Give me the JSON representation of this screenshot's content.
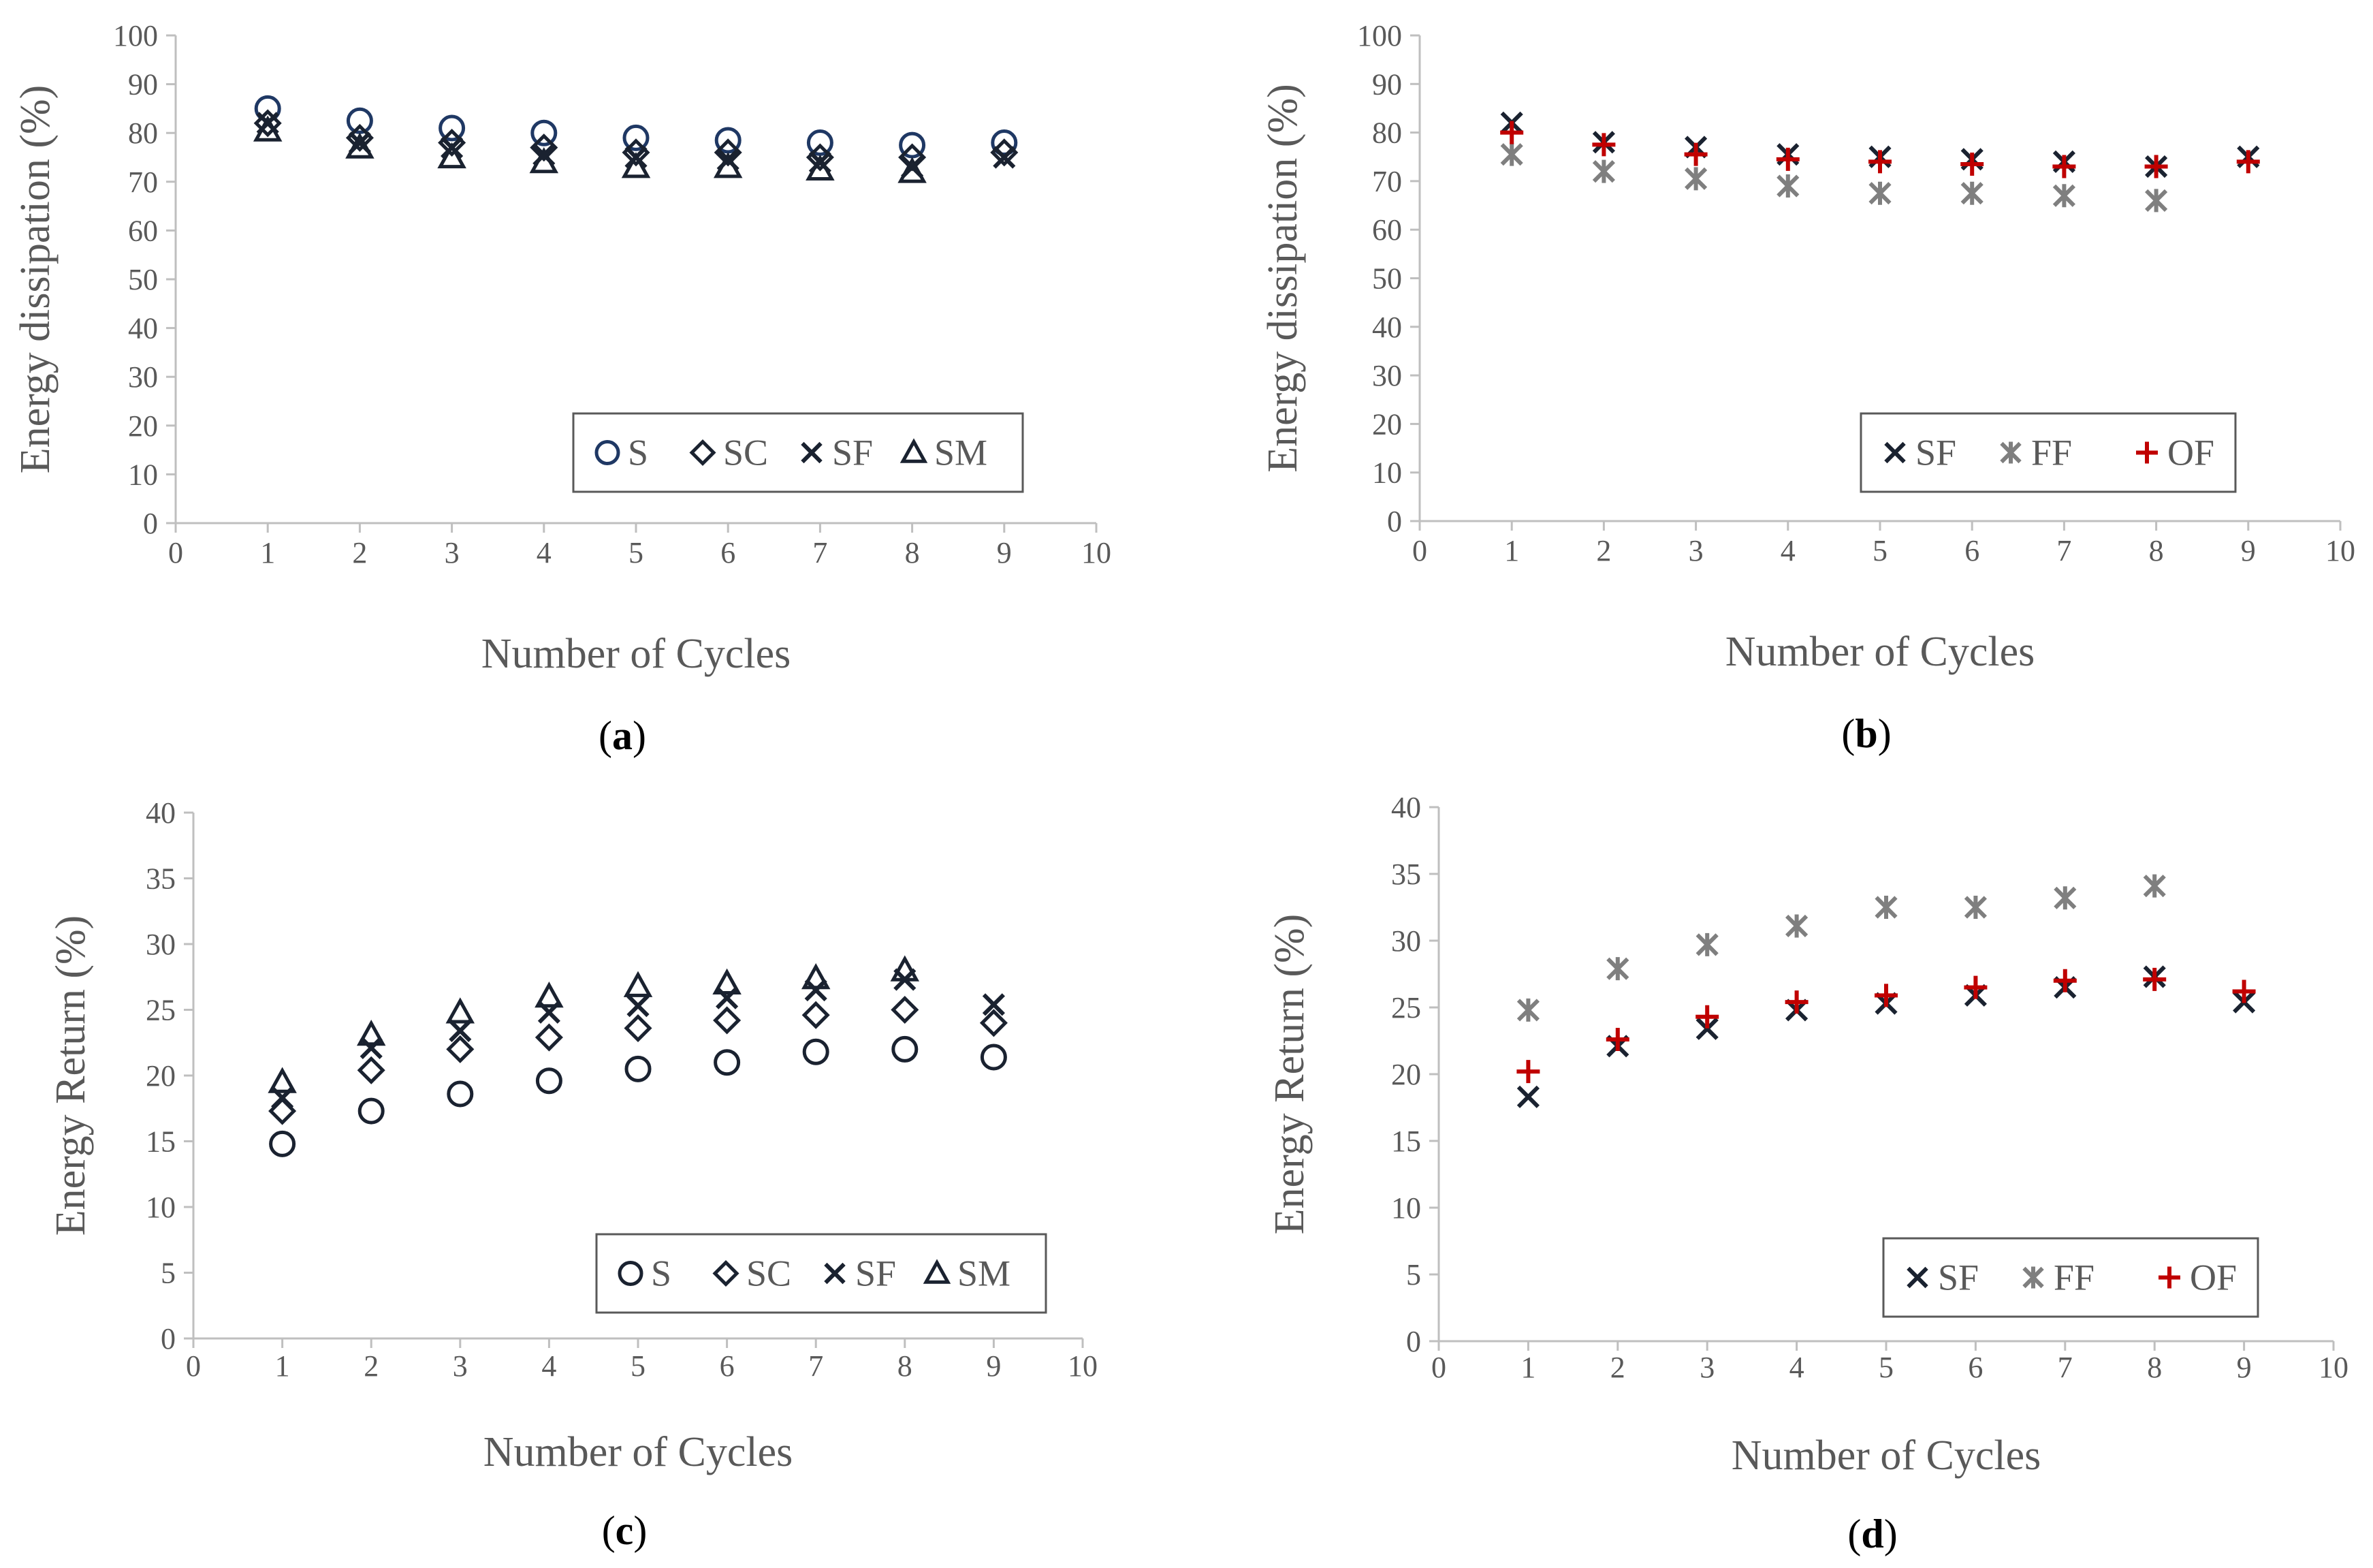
{
  "colors": {
    "navy": "#1f3864",
    "dark": "#1a2230",
    "gray": "#7f7f7f",
    "red": "#c00000",
    "axis": "#bfbfbf",
    "text": "#595959"
  },
  "chart_data": [
    {
      "id": "a",
      "type": "scatter",
      "caption": "(a)",
      "xlabel": "Number of Cycles",
      "ylabel": "Energy dissipation (%)",
      "xlim": [
        0,
        10
      ],
      "ylim": [
        0,
        100
      ],
      "xticks": [
        0,
        1,
        2,
        3,
        4,
        5,
        6,
        7,
        8,
        9,
        10
      ],
      "yticks": [
        0,
        10,
        20,
        30,
        40,
        50,
        60,
        70,
        80,
        90,
        100
      ],
      "grid": false,
      "legend_position": "bottom-right",
      "series": [
        {
          "name": "S",
          "marker": "circle",
          "color": "#1f3864",
          "x": [
            1,
            2,
            3,
            4,
            5,
            6,
            7,
            8,
            9
          ],
          "y": [
            85,
            82.5,
            81,
            80,
            79,
            78.5,
            78,
            77.5,
            78
          ]
        },
        {
          "name": "SC",
          "marker": "diamond",
          "color": "#1a2230",
          "x": [
            1,
            2,
            3,
            4,
            5,
            6,
            7,
            8,
            9
          ],
          "y": [
            82,
            79,
            78,
            77,
            76,
            76,
            75,
            75,
            76
          ]
        },
        {
          "name": "SF",
          "marker": "x",
          "color": "#1a2230",
          "x": [
            1,
            2,
            3,
            4,
            5,
            6,
            7,
            8,
            9
          ],
          "y": [
            82,
            78,
            77,
            75.5,
            75,
            74.5,
            74,
            73,
            75
          ]
        },
        {
          "name": "SM",
          "marker": "triangle",
          "color": "#1a2230",
          "x": [
            1,
            2,
            3,
            4,
            5,
            6,
            7,
            8
          ],
          "y": [
            80.5,
            77,
            75,
            74,
            73,
            73,
            72.5,
            72
          ]
        }
      ]
    },
    {
      "id": "b",
      "type": "scatter",
      "caption": "(b)",
      "xlabel": "Number of Cycles",
      "ylabel": "Energy dissipation (%)",
      "xlim": [
        0,
        10
      ],
      "ylim": [
        0,
        100
      ],
      "xticks": [
        0,
        1,
        2,
        3,
        4,
        5,
        6,
        7,
        8,
        9,
        10
      ],
      "yticks": [
        0,
        10,
        20,
        30,
        40,
        50,
        60,
        70,
        80,
        90,
        100
      ],
      "grid": false,
      "legend_position": "bottom-right",
      "series": [
        {
          "name": "SF",
          "marker": "x",
          "color": "#1a2230",
          "x": [
            1,
            2,
            3,
            4,
            5,
            6,
            7,
            8,
            9
          ],
          "y": [
            82,
            78,
            77,
            75.5,
            75,
            74.5,
            74,
            73,
            75
          ]
        },
        {
          "name": "FF",
          "marker": "asterisk",
          "color": "#7f7f7f",
          "x": [
            1,
            2,
            3,
            4,
            5,
            6,
            7,
            8
          ],
          "y": [
            75.5,
            72,
            70.5,
            69,
            67.5,
            67.5,
            67,
            66
          ]
        },
        {
          "name": "OF",
          "marker": "plus",
          "color": "#c00000",
          "x": [
            1,
            2,
            3,
            4,
            5,
            6,
            7,
            8,
            9
          ],
          "y": [
            80,
            77.5,
            75.5,
            74.5,
            74,
            73.5,
            73,
            73,
            74
          ]
        }
      ]
    },
    {
      "id": "c",
      "type": "scatter",
      "caption": "(c)",
      "xlabel": "Number of Cycles",
      "ylabel": "Energy Return (%)",
      "xlim": [
        0,
        10
      ],
      "ylim": [
        0,
        40
      ],
      "xticks": [
        0,
        1,
        2,
        3,
        4,
        5,
        6,
        7,
        8,
        9,
        10
      ],
      "yticks": [
        0,
        5,
        10,
        15,
        20,
        25,
        30,
        35,
        40
      ],
      "grid": false,
      "legend_position": "bottom-right",
      "series": [
        {
          "name": "S",
          "marker": "circle",
          "color": "#1a2230",
          "x": [
            1,
            2,
            3,
            4,
            5,
            6,
            7,
            8,
            9
          ],
          "y": [
            14.8,
            17.3,
            18.6,
            19.6,
            20.5,
            21,
            21.8,
            22,
            21.4
          ]
        },
        {
          "name": "SC",
          "marker": "diamond",
          "color": "#1a2230",
          "x": [
            1,
            2,
            3,
            4,
            5,
            6,
            7,
            8,
            9
          ],
          "y": [
            17.3,
            20.4,
            22,
            22.9,
            23.6,
            24.2,
            24.6,
            25,
            24
          ]
        },
        {
          "name": "SF",
          "marker": "x",
          "color": "#1a2230",
          "x": [
            1,
            2,
            3,
            4,
            5,
            6,
            7,
            8,
            9
          ],
          "y": [
            18.3,
            22.1,
            23.4,
            24.8,
            25.3,
            25.9,
            26.5,
            27.3,
            25.4
          ]
        },
        {
          "name": "SM",
          "marker": "triangle",
          "color": "#1a2230",
          "x": [
            1,
            2,
            3,
            4,
            5,
            6,
            7,
            8
          ],
          "y": [
            19.5,
            23.1,
            24.8,
            26,
            26.8,
            27,
            27.4,
            28
          ]
        }
      ]
    },
    {
      "id": "d",
      "type": "scatter",
      "caption": "(d)",
      "xlabel": "Number of Cycles",
      "ylabel": "Energy Return (%)",
      "xlim": [
        0,
        10
      ],
      "ylim": [
        0,
        40
      ],
      "xticks": [
        0,
        1,
        2,
        3,
        4,
        5,
        6,
        7,
        8,
        9,
        10
      ],
      "yticks": [
        0,
        5,
        10,
        15,
        20,
        25,
        30,
        35,
        40
      ],
      "grid": false,
      "legend_position": "bottom-right",
      "series": [
        {
          "name": "SF",
          "marker": "x",
          "color": "#1a2230",
          "x": [
            1,
            2,
            3,
            4,
            5,
            6,
            7,
            8,
            9
          ],
          "y": [
            18.3,
            22.1,
            23.4,
            24.8,
            25.3,
            25.9,
            26.5,
            27.3,
            25.4
          ]
        },
        {
          "name": "FF",
          "marker": "asterisk",
          "color": "#7f7f7f",
          "x": [
            1,
            2,
            3,
            4,
            5,
            6,
            7,
            8
          ],
          "y": [
            24.8,
            27.9,
            29.7,
            31.1,
            32.5,
            32.5,
            33.2,
            34.1
          ]
        },
        {
          "name": "OF",
          "marker": "plus",
          "color": "#c00000",
          "x": [
            1,
            2,
            3,
            4,
            5,
            6,
            7,
            8,
            9
          ],
          "y": [
            20.2,
            22.6,
            24.3,
            25.4,
            25.9,
            26.5,
            27,
            27.1,
            26.2
          ]
        }
      ]
    }
  ]
}
